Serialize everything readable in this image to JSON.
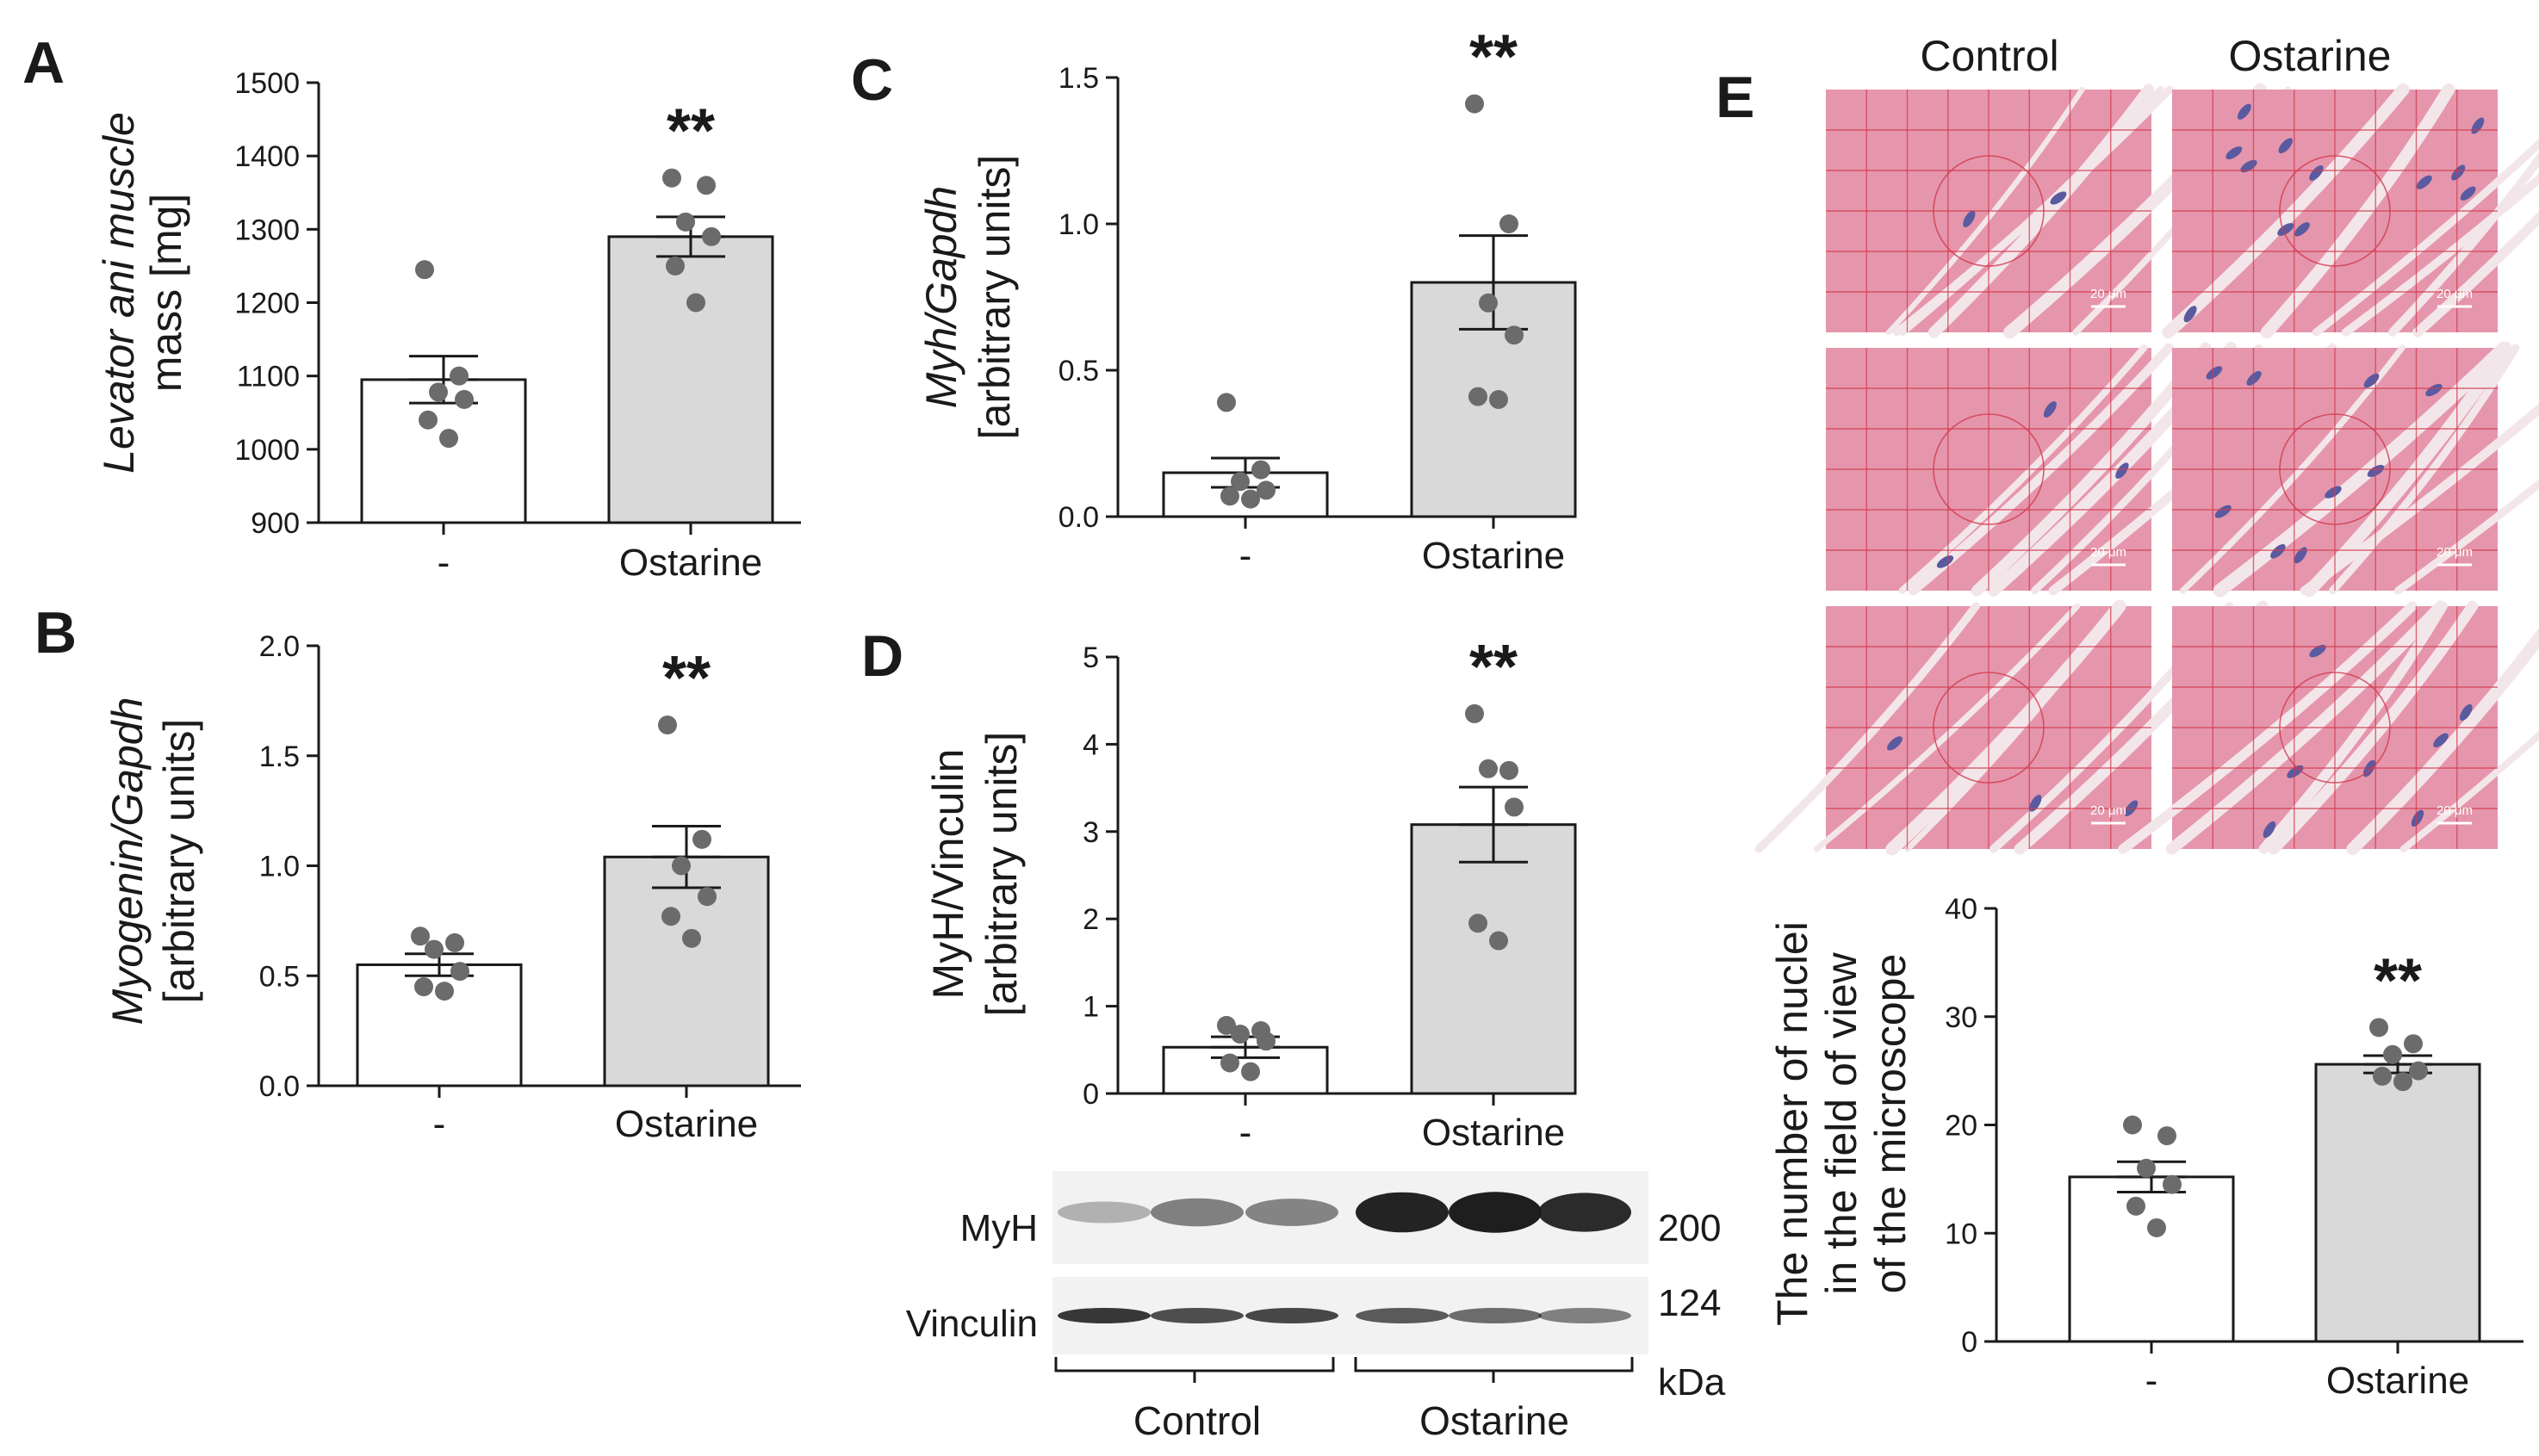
{
  "panel_letters": {
    "A": "A",
    "B": "B",
    "C": "C",
    "D": "D",
    "E": "E"
  },
  "colors": {
    "control_bar": "#ffffff",
    "ostarine_bar": "#d9d9d9",
    "dot": "#6b6b6b",
    "axis": "#1a1a1a",
    "tissue": "#e596ac",
    "grid_line": "#d23a4e",
    "nucleus": "#5a5aa0"
  },
  "chart_data": [
    {
      "id": "A",
      "type": "bar",
      "ylabel_lines": [
        "Levator ani muscle",
        "mass [mg]"
      ],
      "categories": [
        "-",
        "Ostarine"
      ],
      "ylim": [
        900,
        1500
      ],
      "yticks": [
        900,
        1000,
        1100,
        1200,
        1300,
        1400,
        1500
      ],
      "tick_labels": [
        "900",
        "1000",
        "1100",
        "1200",
        "1300",
        "1400",
        "1500"
      ],
      "values": [
        1095,
        1290
      ],
      "errors": [
        32,
        27
      ],
      "points": [
        [
          1245,
          1100,
          1078,
          1068,
          1040,
          1015
        ],
        [
          1370,
          1360,
          1310,
          1290,
          1250,
          1200
        ]
      ],
      "significance": [
        "",
        "**"
      ]
    },
    {
      "id": "B",
      "type": "bar",
      "ylabel_lines": [
        "Myogenin/Gapdh",
        "[arbitrary units]"
      ],
      "categories": [
        "-",
        "Ostarine"
      ],
      "ylim": [
        0,
        2.0
      ],
      "yticks": [
        0,
        0.5,
        1.0,
        1.5,
        2.0
      ],
      "tick_labels": [
        "0.0",
        "0.5",
        "1.0",
        "1.5",
        "2.0"
      ],
      "values": [
        0.55,
        1.04
      ],
      "errors": [
        0.05,
        0.14
      ],
      "points": [
        [
          0.68,
          0.65,
          0.62,
          0.52,
          0.45,
          0.43
        ],
        [
          1.64,
          1.12,
          1.0,
          0.86,
          0.77,
          0.67
        ]
      ],
      "significance": [
        "",
        "**"
      ]
    },
    {
      "id": "C",
      "type": "bar",
      "ylabel_lines": [
        "Myh/Gapdh",
        "[arbitrary units]"
      ],
      "categories": [
        "-",
        "Ostarine"
      ],
      "ylim": [
        0,
        1.5
      ],
      "yticks": [
        0,
        0.5,
        1.0,
        1.5
      ],
      "tick_labels": [
        "0.0",
        "0.5",
        "1.0",
        "1.5"
      ],
      "values": [
        0.15,
        0.8
      ],
      "errors": [
        0.05,
        0.16
      ],
      "points": [
        [
          0.39,
          0.16,
          0.12,
          0.09,
          0.07,
          0.06
        ],
        [
          1.41,
          1.0,
          0.73,
          0.62,
          0.41,
          0.4
        ]
      ],
      "significance": [
        "",
        "**"
      ]
    },
    {
      "id": "D",
      "type": "bar",
      "ylabel_lines": [
        "MyH/Vinculin",
        "[arbitrary units]"
      ],
      "categories": [
        "-",
        "Ostarine"
      ],
      "ylim": [
        0,
        5
      ],
      "yticks": [
        0,
        1,
        2,
        3,
        4,
        5
      ],
      "tick_labels": [
        "0",
        "1",
        "2",
        "3",
        "4",
        "5"
      ],
      "values": [
        0.53,
        3.08
      ],
      "errors": [
        0.12,
        0.43
      ],
      "points": [
        [
          0.78,
          0.72,
          0.68,
          0.6,
          0.35,
          0.25
        ],
        [
          4.35,
          3.7,
          3.72,
          3.28,
          1.95,
          1.75
        ]
      ],
      "significance": [
        "",
        "**"
      ]
    },
    {
      "id": "E",
      "type": "bar",
      "ylabel_lines": [
        "The number of nuclei",
        "in the field of view",
        "of the microscope"
      ],
      "categories": [
        "-",
        "Ostarine"
      ],
      "ylim": [
        0,
        40
      ],
      "yticks": [
        0,
        10,
        20,
        30,
        40
      ],
      "tick_labels": [
        "0",
        "10",
        "20",
        "30",
        "40"
      ],
      "values": [
        15.2,
        25.6
      ],
      "errors": [
        1.4,
        0.8
      ],
      "points": [
        [
          20.0,
          19.0,
          16.0,
          14.5,
          12.5,
          10.5
        ],
        [
          29.0,
          27.5,
          26.5,
          25.0,
          24.5,
          24.0
        ]
      ],
      "significance": [
        "",
        "**"
      ]
    }
  ],
  "blot": {
    "bands": [
      {
        "label": "MyH",
        "marker": "200",
        "intensity": [
          0.18,
          0.45,
          0.42,
          0.95,
          0.98,
          0.9
        ]
      },
      {
        "label": "Vinculin",
        "marker": "124",
        "intensity": [
          0.85,
          0.72,
          0.75,
          0.65,
          0.55,
          0.45
        ]
      }
    ],
    "unit": "kDa",
    "groups": [
      "Control",
      "Ostarine"
    ]
  },
  "histology": {
    "columns": [
      "Control",
      "Ostarine"
    ],
    "scale_bar_label": "20 μm",
    "nuclei_per_tile": [
      [
        2,
        3,
        3
      ],
      [
        12,
        9,
        7
      ]
    ]
  }
}
